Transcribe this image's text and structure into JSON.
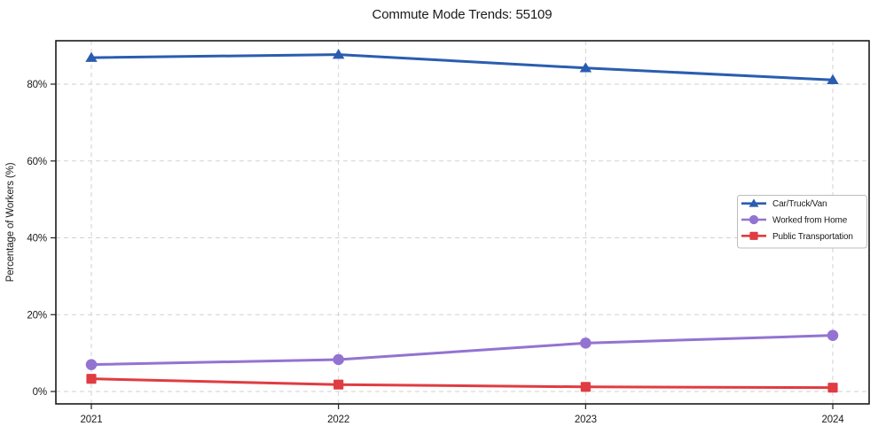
{
  "chart_data": {
    "type": "line",
    "title": "Commute Mode Trends: 55109",
    "ylabel": "Percentage of Workers (%)",
    "xlabel": "",
    "x_categories": [
      "2021",
      "2022",
      "2023",
      "2024"
    ],
    "yticks": {
      "values": [
        0,
        20,
        40,
        60,
        80
      ],
      "labels": [
        "0%",
        "20%",
        "40%",
        "60%",
        "80%"
      ]
    },
    "ylim": [
      -3.2,
      91.3
    ],
    "grid": true,
    "grid_style": "dashed",
    "gridline_color": "#d2d2d2",
    "axis_text_color": "#1a1a1a",
    "plot_border_color": "#1a1a1a",
    "series": [
      {
        "name": "Car/Truck/Van",
        "marker": "triangle",
        "color": "#2a5db0",
        "values": [
          86.9,
          87.7,
          84.2,
          81.1
        ]
      },
      {
        "name": "Worked from Home",
        "marker": "circle",
        "color": "#9373d2",
        "values": [
          7.0,
          8.3,
          12.6,
          14.6
        ]
      },
      {
        "name": "Public Transportation",
        "marker": "square",
        "color": "#e03c41",
        "values": [
          3.3,
          1.8,
          1.2,
          1.0
        ]
      }
    ],
    "legend": {
      "position": "middle-right",
      "background": "#ffffff",
      "border_color": "#bdbdbd",
      "entries": [
        "Car/Truck/Van",
        "Worked from Home",
        "Public Transportation"
      ]
    }
  }
}
